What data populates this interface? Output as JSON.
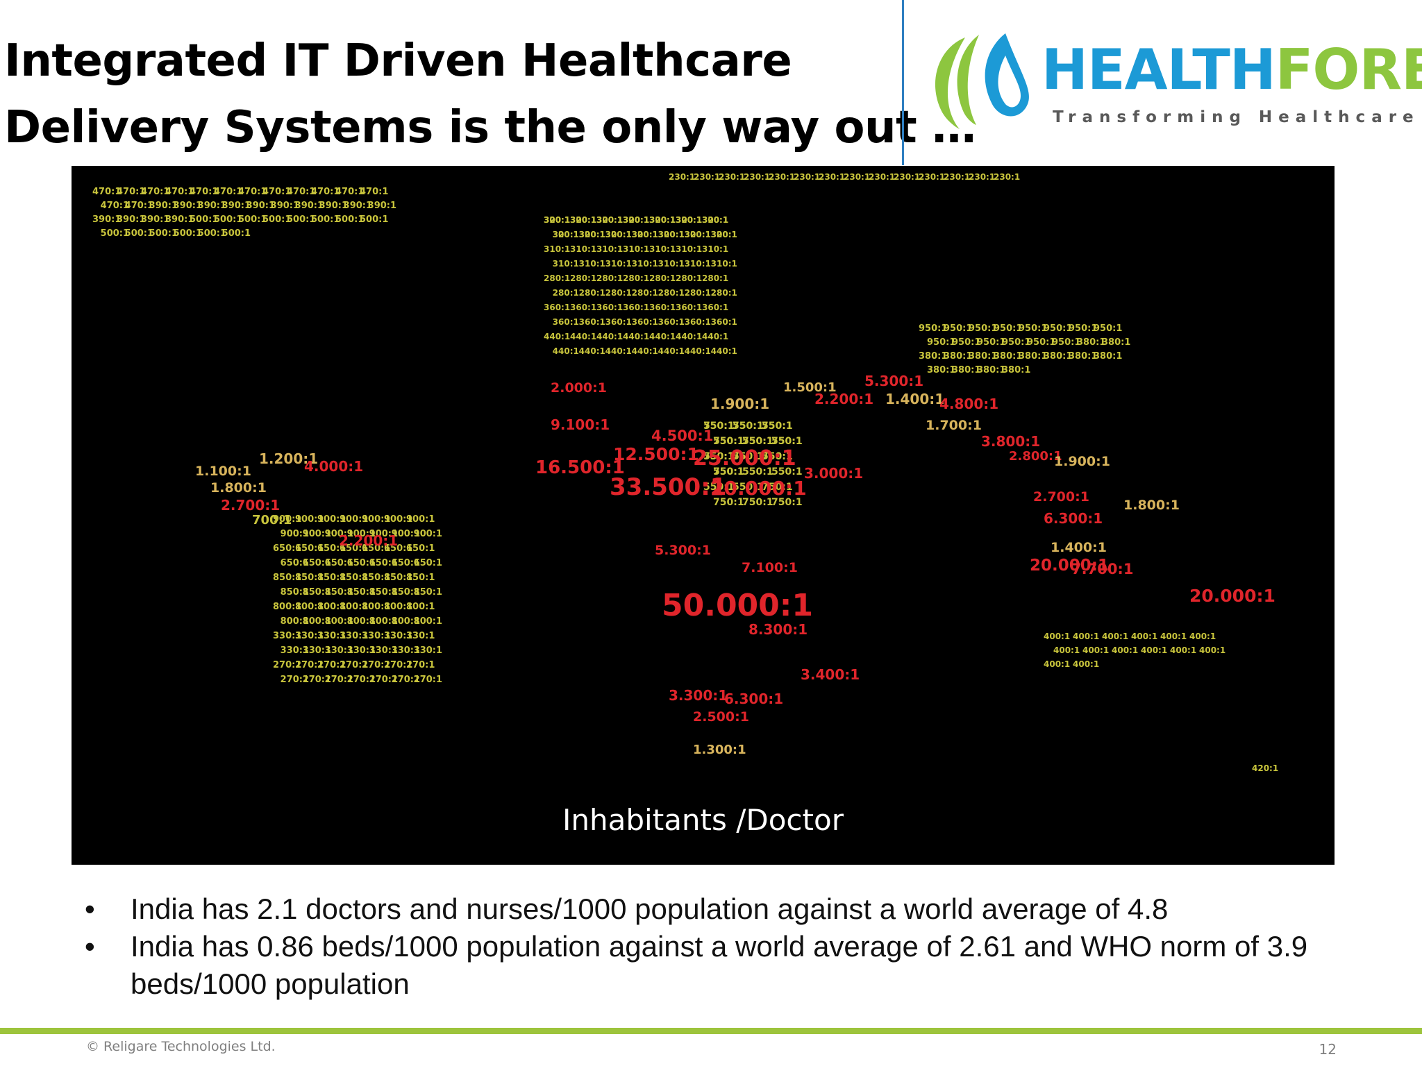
{
  "slide": {
    "title_lines": [
      "Integrated IT Driven Healthcare",
      "Delivery Systems is the only way out …"
    ],
    "page_number": "12"
  },
  "logo": {
    "brand_part1": "HEALTH",
    "brand_part2": "FORE",
    "tagline": "Transforming  Healthcare",
    "colors": {
      "blue": "#1c9ad6",
      "green": "#8dc63f"
    }
  },
  "map": {
    "caption": "Inhabitants /Doctor",
    "colors": {
      "low": "#c8c43c",
      "high": "#e0252b"
    },
    "labels": [
      {
        "v": "470:1",
        "r": "north-america"
      },
      {
        "v": "390:1",
        "r": "north-america"
      },
      {
        "v": "500:1",
        "r": "north-america"
      },
      {
        "v": "1.100:1",
        "r": "central-america"
      },
      {
        "v": "1.800:1",
        "r": "central-america"
      },
      {
        "v": "2.700:1",
        "r": "central-america"
      },
      {
        "v": "1.200:1",
        "r": "caribbean"
      },
      {
        "v": "4.000:1",
        "r": "caribbean"
      },
      {
        "v": "700:1",
        "r": "central-america"
      },
      {
        "v": "2.200:1",
        "r": "south-america"
      },
      {
        "v": "900:1",
        "r": "south-america"
      },
      {
        "v": "650:1",
        "r": "south-america"
      },
      {
        "v": "850:1",
        "r": "south-america"
      },
      {
        "v": "800:1",
        "r": "south-america"
      },
      {
        "v": "330:1",
        "r": "south-america"
      },
      {
        "v": "270:1",
        "r": "south-america"
      },
      {
        "v": "230:1",
        "r": "russia"
      },
      {
        "v": "320:1",
        "r": "europe"
      },
      {
        "v": "310:1",
        "r": "europe"
      },
      {
        "v": "280:1",
        "r": "europe"
      },
      {
        "v": "360:1",
        "r": "europe"
      },
      {
        "v": "440:1",
        "r": "europe"
      },
      {
        "v": "300:1",
        "r": "europe"
      },
      {
        "v": "550:1",
        "r": "middle-east"
      },
      {
        "v": "750:1",
        "r": "middle-east"
      },
      {
        "v": "2.000:1",
        "r": "north-africa"
      },
      {
        "v": "9.100:1",
        "r": "west-africa"
      },
      {
        "v": "16.500:1",
        "r": "west-africa"
      },
      {
        "v": "12.500:1",
        "r": "west-africa"
      },
      {
        "v": "25.000:1",
        "r": "west-africa"
      },
      {
        "v": "33.500:1",
        "r": "central-africa"
      },
      {
        "v": "20.000:1",
        "r": "central-africa"
      },
      {
        "v": "1.900:1",
        "r": "north-africa"
      },
      {
        "v": "4.500:1",
        "r": "north-africa"
      },
      {
        "v": "2.200:1",
        "r": "central-asia"
      },
      {
        "v": "5.300:1",
        "r": "central-asia"
      },
      {
        "v": "1.500:1",
        "r": "middle-east"
      },
      {
        "v": "1.400:1",
        "r": "south-asia"
      },
      {
        "v": "4.800:1",
        "r": "south-asia"
      },
      {
        "v": "1.700:1",
        "r": "south-asia"
      },
      {
        "v": "20.000:1",
        "r": "south-asia"
      },
      {
        "v": "3.800:1",
        "r": "south-asia"
      },
      {
        "v": "950:1",
        "r": "east-asia"
      },
      {
        "v": "380:1",
        "r": "east-asia"
      },
      {
        "v": "3.000:1",
        "r": "east-africa"
      },
      {
        "v": "2.800:1",
        "r": "southeast-asia"
      },
      {
        "v": "1.900:1",
        "r": "southeast-asia"
      },
      {
        "v": "1.800:1",
        "r": "southeast-asia"
      },
      {
        "v": "2.700:1",
        "r": "southeast-asia"
      },
      {
        "v": "6.300:1",
        "r": "southeast-asia"
      },
      {
        "v": "1.400:1",
        "r": "southeast-asia"
      },
      {
        "v": "7.700:1",
        "r": "oceania"
      },
      {
        "v": "20.000:1",
        "r": "oceania"
      },
      {
        "v": "5.300:1",
        "r": "east-africa"
      },
      {
        "v": "7.100:1",
        "r": "east-africa"
      },
      {
        "v": "50.000:1",
        "r": "southern-africa"
      },
      {
        "v": "8.300:1",
        "r": "southern-africa"
      },
      {
        "v": "3.400:1",
        "r": "madagascar"
      },
      {
        "v": "3.300:1",
        "r": "southern-africa"
      },
      {
        "v": "6.300:1",
        "r": "southern-africa"
      },
      {
        "v": "2.500:1",
        "r": "southern-africa"
      },
      {
        "v": "1.300:1",
        "r": "southern-africa"
      },
      {
        "v": "400:1",
        "r": "australia"
      },
      {
        "v": "420:1",
        "r": "new-zealand"
      }
    ]
  },
  "bullets": [
    {
      "marker": "•",
      "text": "India has 2.1 doctors and nurses/1000 population against a world average of 4.8"
    },
    {
      "marker": "•",
      "text": "India has 0.86 beds/1000 population against a world average of 2.61 and WHO norm of 3.9 beds/1000 population"
    }
  ],
  "footer": {
    "copyright": "© Religare Technologies Ltd."
  }
}
